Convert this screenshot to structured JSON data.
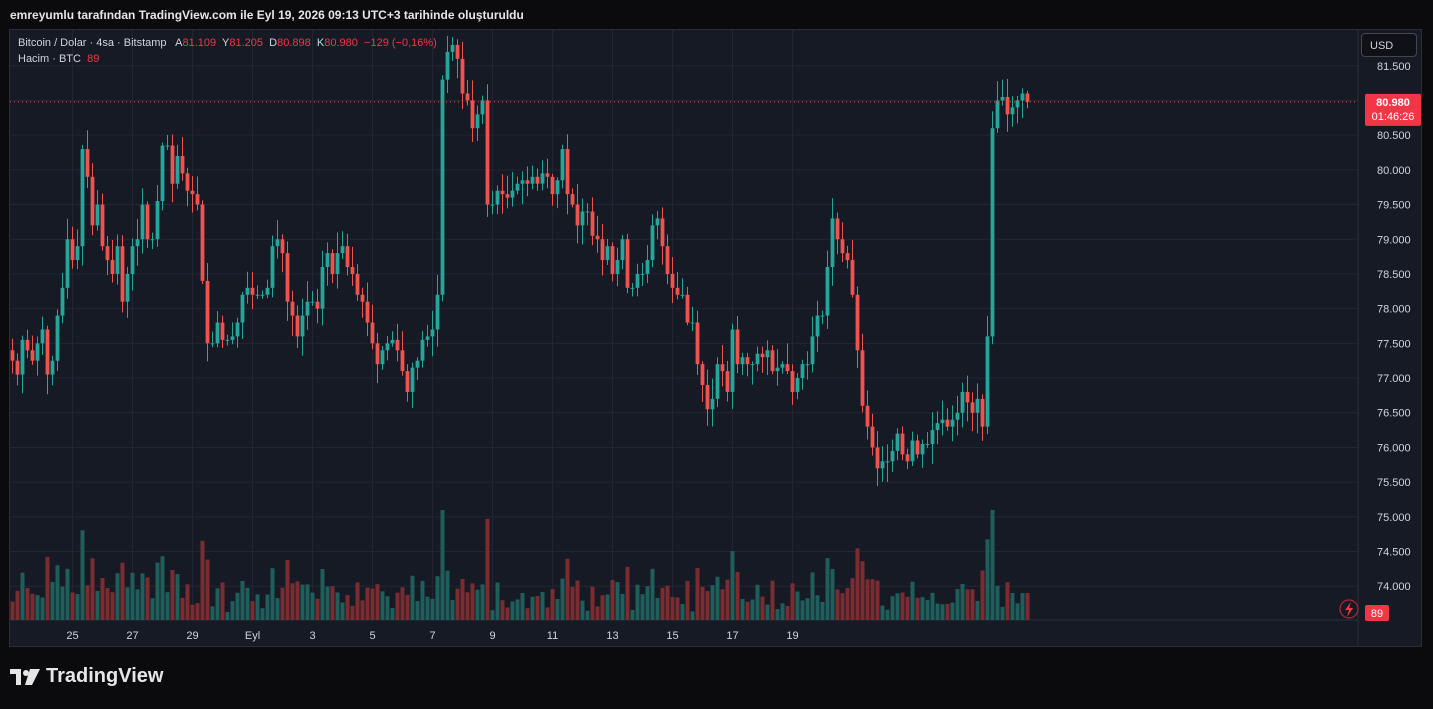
{
  "caption": "emreyumlu tarafından TradingView.com ile Eyl 19, 2026 09:13 UTC+3 tarihinde oluşturuldu",
  "legend": {
    "symbol": "Bitcoin / Dolar · 4sa · Bitstamp",
    "open_label": "A",
    "open_value": "81.109",
    "high_label": "Y",
    "high_value": "81.205",
    "low_label": "D",
    "low_value": "80.898",
    "close_label": "K",
    "close_value": "80.980",
    "change": "−129 (−0,16%)",
    "volume_label": "Hacim · BTC",
    "volume_value": "89"
  },
  "currency_button": "USD",
  "price_label": {
    "price": "80.980",
    "countdown": "01:46:26"
  },
  "volume_badge": "89",
  "footer_brand": "TradingView",
  "colors": {
    "up": "#26a69a",
    "down": "#ef5350",
    "up_vol": "#1e5f5c",
    "down_vol": "#7a2c30",
    "grid": "#232632",
    "background": "#161a25"
  },
  "chart_data": {
    "type": "candlestick",
    "symbol": "BTC/USD",
    "interval": "4sa",
    "ylim": [
      73600,
      81900
    ],
    "y_ticks": [
      "81.500",
      "81.000",
      "80.500",
      "80.000",
      "79.500",
      "79.000",
      "78.500",
      "78.000",
      "77.500",
      "77.000",
      "76.500",
      "76.000",
      "75.500",
      "75.000",
      "74.500",
      "74.000"
    ],
    "y_tick_values": [
      81500,
      81000,
      80500,
      80000,
      79500,
      79000,
      78500,
      78000,
      77500,
      77000,
      76500,
      76000,
      75500,
      75000,
      74500,
      74000
    ],
    "x_ticks": [
      "25",
      "27",
      "29",
      "Eyl",
      "3",
      "5",
      "7",
      "9",
      "11",
      "13",
      "15",
      "17",
      "19"
    ],
    "x_tick_bar_index": [
      12,
      24,
      36,
      48,
      60,
      72,
      84,
      96,
      108,
      120,
      132,
      144,
      156
    ],
    "last_price": 80980,
    "closes": [
      77250,
      77050,
      77550,
      77400,
      77250,
      77500,
      77700,
      77050,
      77250,
      77900,
      78300,
      79000,
      78700,
      78900,
      80300,
      79900,
      79200,
      79500,
      78900,
      78700,
      78500,
      78900,
      78100,
      78500,
      78900,
      79000,
      79500,
      79000,
      79000,
      79550,
      80350,
      80350,
      79800,
      80200,
      79950,
      79700,
      79650,
      79500,
      78400,
      77500,
      77500,
      77800,
      77550,
      77550,
      77600,
      77800,
      78200,
      78300,
      78200,
      78200,
      78200,
      78300,
      78900,
      79000,
      78800,
      78100,
      77900,
      77600,
      77900,
      78100,
      78100,
      78000,
      78600,
      78800,
      78500,
      78800,
      78900,
      78600,
      78500,
      78200,
      78100,
      77800,
      77500,
      77200,
      77400,
      77500,
      77550,
      77400,
      77100,
      76800,
      77150,
      77250,
      77550,
      77600,
      77700,
      78200,
      81300,
      81700,
      81800,
      81600,
      81100,
      81000,
      80600,
      80800,
      81000,
      79500,
      79500,
      79700,
      79650,
      79600,
      79700,
      79800,
      79850,
      79800,
      79900,
      79800,
      79950,
      79900,
      79650,
      79850,
      80300,
      79650,
      79500,
      79200,
      79400,
      79400,
      79050,
      79000,
      78700,
      78900,
      78500,
      78700,
      79000,
      78300,
      78300,
      78500,
      78500,
      78700,
      79200,
      79300,
      78900,
      78500,
      78300,
      78200,
      78200,
      77800,
      77800,
      77200,
      76900,
      76550,
      76700,
      77200,
      77100,
      76800,
      77700,
      77200,
      77300,
      77200,
      77200,
      77350,
      77300,
      77400,
      77100,
      77150,
      77200,
      77100,
      76800,
      77000,
      77200,
      77200,
      77600,
      77900,
      77900,
      78600,
      79300,
      79000,
      78800,
      78700,
      78200,
      77400,
      76600,
      76300,
      76000,
      75700,
      75800,
      75800,
      75950,
      76200,
      75900,
      75800,
      76100,
      75900,
      76050,
      76050,
      76250,
      76350,
      76400,
      76300,
      76400,
      76500,
      76800,
      76650,
      76500,
      76700,
      76300,
      77600,
      80600,
      81000,
      81050,
      80800,
      80900,
      81000,
      81100,
      80980
    ]
  }
}
